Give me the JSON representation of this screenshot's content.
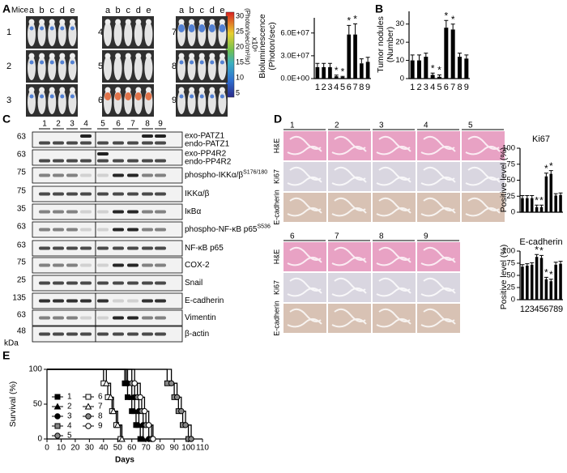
{
  "panel_labels": [
    "A",
    "B",
    "C",
    "D",
    "E"
  ],
  "panel_a": {
    "mice_label": "Mice",
    "columns": [
      "a",
      "b",
      "c",
      "d",
      "e"
    ],
    "groups": [
      "1",
      "2",
      "3",
      "4",
      "5",
      "6",
      "7",
      "8",
      "9"
    ],
    "colorbar": {
      "ticks": [
        30,
        25,
        20,
        15,
        10,
        5
      ],
      "scale": "x10⁶",
      "unit": "(Photon/sec/cm²/sr)"
    }
  },
  "panel_c": {
    "lanes": [
      "1",
      "2",
      "3",
      "4",
      "5",
      "6",
      "7",
      "8",
      "9"
    ],
    "kda": "kDa",
    "rows": [
      {
        "mw": "63",
        "labels": [
          "exo-PATZ1",
          "endo-PATZ1"
        ]
      },
      {
        "mw": "63",
        "labels": [
          "exo-PP4R2",
          "endo-PP4R2"
        ]
      },
      {
        "mw": "75",
        "labels": [
          "phospho-IKKα/β"
        ],
        "sup": "S176/180"
      },
      {
        "mw": "75",
        "labels": [
          "IKKα/β"
        ]
      },
      {
        "mw": "35",
        "labels": [
          "IκBα"
        ]
      },
      {
        "mw": "63",
        "labels": [
          "phospho-NF-κB p65"
        ],
        "sup": "S536"
      },
      {
        "mw": "63",
        "labels": [
          "NF-κB p65"
        ]
      },
      {
        "mw": "75",
        "labels": [
          "COX-2"
        ]
      },
      {
        "mw": "25",
        "labels": [
          "Snail"
        ]
      },
      {
        "mw": "135",
        "labels": [
          "E-cadherin"
        ]
      },
      {
        "mw": "63",
        "labels": [
          "Vimentin"
        ]
      },
      {
        "mw": "48",
        "labels": [
          "β-actin"
        ]
      }
    ]
  },
  "panel_d": {
    "columns_top": [
      "1",
      "2",
      "3",
      "4",
      "5"
    ],
    "columns_bottom": [
      "6",
      "7",
      "8",
      "9"
    ],
    "rows": [
      "H&E",
      "Ki67",
      "E-cadherin"
    ]
  },
  "chart_data": [
    {
      "type": "bar",
      "ylabel": [
        "Bioluminescence",
        "(Photon/sec)"
      ],
      "categories": [
        "1",
        "2",
        "3",
        "4",
        "5",
        "6",
        "7",
        "8",
        "9"
      ],
      "values": [
        15000000,
        15000000,
        15000000,
        3000000,
        2000000,
        58000000,
        58000000,
        20000000,
        22000000
      ],
      "errors": [
        5000000,
        5000000,
        5000000,
        1500000,
        1000000,
        12000000,
        14000000,
        6000000,
        6000000
      ],
      "significant": [
        false,
        false,
        false,
        true,
        true,
        true,
        true,
        false,
        false
      ],
      "significance_label": "*",
      "color": "#000000",
      "ylim": [
        0,
        80000000
      ],
      "yticks": [
        {
          "value": 0,
          "label": "0.0E+00"
        },
        {
          "value": 30000000,
          "label": "3.0E+07"
        },
        {
          "value": 60000000,
          "label": "6.0E+07"
        }
      ]
    },
    {
      "type": "bar",
      "ylabel": [
        "Tumor nodules",
        "(Number)"
      ],
      "categories": [
        "1",
        "2",
        "3",
        "4",
        "5",
        "6",
        "7",
        "8",
        "9"
      ],
      "values": [
        10,
        10,
        12,
        2,
        1,
        28,
        27,
        12,
        11
      ],
      "errors": [
        3,
        3,
        2,
        1,
        1,
        4,
        3,
        2,
        2
      ],
      "significant": [
        false,
        false,
        false,
        true,
        true,
        true,
        true,
        false,
        false
      ],
      "significance_label": "*",
      "color": "#000000",
      "ylim": [
        0,
        37
      ],
      "yticks": [
        0,
        10,
        20,
        30
      ]
    },
    {
      "type": "bar",
      "title": "Ki67",
      "ylabel": [
        "Positive level (%)"
      ],
      "values": [
        22,
        22,
        22,
        8,
        8,
        56,
        60,
        26,
        27
      ],
      "errors": [
        4,
        4,
        4,
        3,
        3,
        5,
        5,
        3,
        3
      ],
      "significant": [
        false,
        false,
        false,
        true,
        true,
        true,
        true,
        false,
        false
      ],
      "significance_label": "*",
      "color": "#000000",
      "ylim": [
        0,
        100
      ],
      "yticks": [
        0,
        25,
        50,
        75,
        100
      ]
    },
    {
      "type": "bar",
      "title": "E-cadherin",
      "ylabel": [
        "Positive level (%)"
      ],
      "categories": [
        "1",
        "2",
        "3",
        "4",
        "5",
        "6",
        "7",
        "8",
        "9"
      ],
      "values": [
        68,
        70,
        72,
        88,
        86,
        42,
        38,
        72,
        74
      ],
      "errors": [
        4,
        4,
        4,
        5,
        5,
        4,
        4,
        5,
        5
      ],
      "significant": [
        false,
        false,
        false,
        true,
        true,
        true,
        true,
        false,
        false
      ],
      "significance_label": "*",
      "color": "#000000",
      "ylim": [
        0,
        100
      ],
      "yticks": [
        0,
        25,
        50,
        75,
        100
      ]
    },
    {
      "type": "line",
      "step": true,
      "xlabel": "Days",
      "ylabel": [
        "Survival (%)"
      ],
      "legend": "upper left",
      "xlim": [
        0,
        110
      ],
      "xticks": [
        0,
        10,
        20,
        30,
        40,
        50,
        60,
        70,
        80,
        90,
        100,
        110
      ],
      "ylim": [
        0,
        100
      ],
      "yticks": [
        0,
        50,
        100
      ],
      "series": [
        {
          "name": "1",
          "color": "#000000",
          "marker": "square",
          "fill": "filled",
          "x": [
            0,
            55,
            57,
            60,
            63,
            66
          ],
          "values": [
            100,
            80,
            60,
            40,
            20,
            0
          ]
        },
        {
          "name": "2",
          "color": "#000000",
          "marker": "triangle",
          "fill": "filled",
          "x": [
            0,
            56,
            60,
            62,
            65,
            68
          ],
          "values": [
            100,
            80,
            60,
            40,
            20,
            0
          ]
        },
        {
          "name": "3",
          "color": "#000000",
          "marker": "circle",
          "fill": "filled",
          "x": [
            0,
            57,
            62,
            65,
            68,
            72
          ],
          "values": [
            100,
            80,
            60,
            40,
            20,
            0
          ]
        },
        {
          "name": "4",
          "color": "#000000",
          "marker": "square",
          "fill": "half",
          "x": [
            0,
            85,
            90,
            93,
            96,
            100
          ],
          "values": [
            100,
            80,
            60,
            40,
            20,
            0
          ]
        },
        {
          "name": "5",
          "color": "#000000",
          "marker": "circle",
          "fill": "half",
          "x": [
            0,
            88,
            92,
            95,
            98,
            102
          ],
          "values": [
            100,
            80,
            60,
            40,
            20,
            0
          ]
        },
        {
          "name": "6",
          "color": "#000000",
          "marker": "square",
          "fill": "open",
          "x": [
            0,
            40,
            43,
            46,
            49,
            52
          ],
          "values": [
            100,
            80,
            60,
            40,
            20,
            0
          ]
        },
        {
          "name": "7",
          "color": "#000000",
          "marker": "triangle",
          "fill": "open",
          "x": [
            0,
            42,
            45,
            47,
            50,
            53
          ],
          "values": [
            100,
            80,
            60,
            40,
            20,
            0
          ]
        },
        {
          "name": "8",
          "color": "#000000",
          "marker": "circle",
          "fill": "half",
          "x": [
            0,
            60,
            64,
            67,
            70,
            74
          ],
          "values": [
            100,
            80,
            60,
            40,
            20,
            0
          ]
        },
        {
          "name": "9",
          "color": "#000000",
          "marker": "circle",
          "fill": "open",
          "x": [
            0,
            62,
            66,
            69,
            72,
            75
          ],
          "values": [
            100,
            80,
            60,
            40,
            20,
            0
          ]
        }
      ]
    }
  ]
}
